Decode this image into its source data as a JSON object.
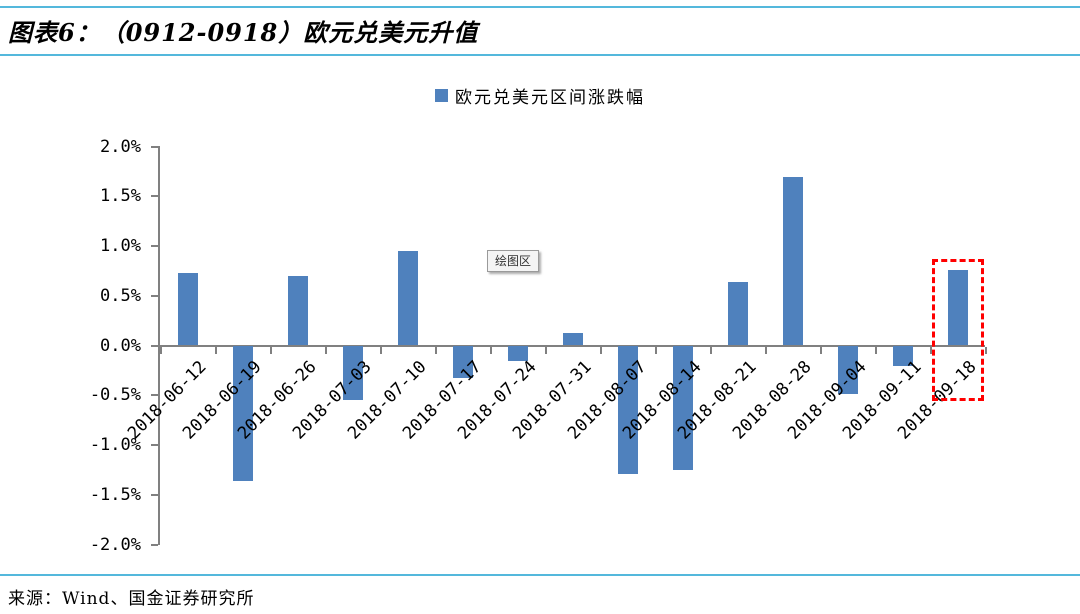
{
  "header": {
    "title": "图表6：（0912-0918）欧元兑美元升值"
  },
  "chart_data": {
    "type": "bar",
    "title": "图表6：（0912-0918）欧元兑美元升值",
    "legend_label": "欧元兑美元区间涨跌幅",
    "legend_position": "top-center",
    "categories": [
      "2018-06-12",
      "2018-06-19",
      "2018-06-26",
      "2018-07-03",
      "2018-07-10",
      "2018-07-17",
      "2018-07-24",
      "2018-07-31",
      "2018-08-07",
      "2018-08-14",
      "2018-08-21",
      "2018-08-28",
      "2018-09-04",
      "2018-09-11",
      "2018-09-18"
    ],
    "values": [
      0.73,
      -1.36,
      0.7,
      -0.55,
      0.95,
      -0.33,
      -0.16,
      0.13,
      -1.29,
      -1.25,
      0.64,
      1.69,
      -0.49,
      -0.21,
      0.76
    ],
    "value_unit": "%",
    "ylim": [
      -2.0,
      2.0
    ],
    "ytick_step": 0.5,
    "ytick_labels": [
      "2.0%",
      "1.5%",
      "1.0%",
      "0.5%",
      "0.0%",
      "-0.5%",
      "-1.0%",
      "-1.5%",
      "-2.0%"
    ],
    "grid": false,
    "bar_color": "#4f81bd",
    "axis_color": "#808080",
    "tooltip_label": "绘图区",
    "highlight": {
      "category_index": 14,
      "category": "2018-09-18",
      "style": "red-dashed-box",
      "color": "#ff0000"
    }
  },
  "footer": {
    "source": "来源：Wind、国金证券研究所"
  },
  "colors": {
    "accent_rule": "#54b8dc",
    "bar": "#4f81bd",
    "axis": "#808080",
    "highlight": "#ff0000"
  }
}
